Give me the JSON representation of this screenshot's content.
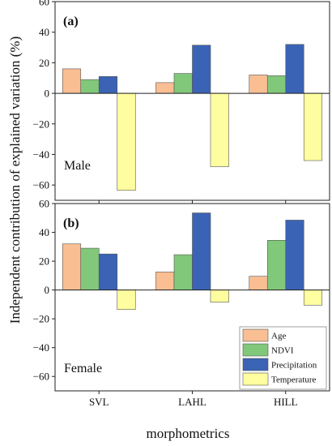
{
  "figure": {
    "ylabel": "Independent contribution of explained variation (%)",
    "xlabel": "morphometrics"
  },
  "legend": {
    "items": [
      {
        "name": "Age",
        "color": "#f9be92"
      },
      {
        "name": "NDVI",
        "color": "#81c87a"
      },
      {
        "name": "Precipitation",
        "color": "#3b63b5"
      },
      {
        "name": "Temperature",
        "color": "#fefea0"
      }
    ]
  },
  "chart_data": [
    {
      "type": "bar",
      "panel_label": "(a)",
      "group_label": "Male",
      "categories": [
        "SVL",
        "LAHL",
        "HILL"
      ],
      "series": [
        {
          "name": "Age",
          "color": "#f9be92",
          "values": [
            16,
            7,
            12
          ]
        },
        {
          "name": "NDVI",
          "color": "#81c87a",
          "values": [
            9,
            13,
            11.5
          ]
        },
        {
          "name": "Precipitation",
          "color": "#3b63b5",
          "values": [
            11,
            31.5,
            32
          ]
        },
        {
          "name": "Temperature",
          "color": "#fefea0",
          "values": [
            -63.5,
            -48,
            -44
          ]
        }
      ],
      "ylim": [
        -70,
        60
      ],
      "yticks": [
        -60,
        -40,
        -20,
        0,
        20,
        40,
        60
      ]
    },
    {
      "type": "bar",
      "panel_label": "(b)",
      "group_label": "Female",
      "categories": [
        "SVL",
        "LAHL",
        "HILL"
      ],
      "series": [
        {
          "name": "Age",
          "color": "#f9be92",
          "values": [
            32,
            12.5,
            9.5
          ]
        },
        {
          "name": "NDVI",
          "color": "#81c87a",
          "values": [
            29,
            24.5,
            34.5
          ]
        },
        {
          "name": "Precipitation",
          "color": "#3b63b5",
          "values": [
            25,
            53.5,
            48.5
          ]
        },
        {
          "name": "Temperature",
          "color": "#fefea0",
          "values": [
            -13.5,
            -8.5,
            -10.5
          ]
        }
      ],
      "ylim": [
        -70,
        60
      ],
      "yticks": [
        -60,
        -40,
        -20,
        0,
        20,
        40,
        60
      ]
    }
  ]
}
